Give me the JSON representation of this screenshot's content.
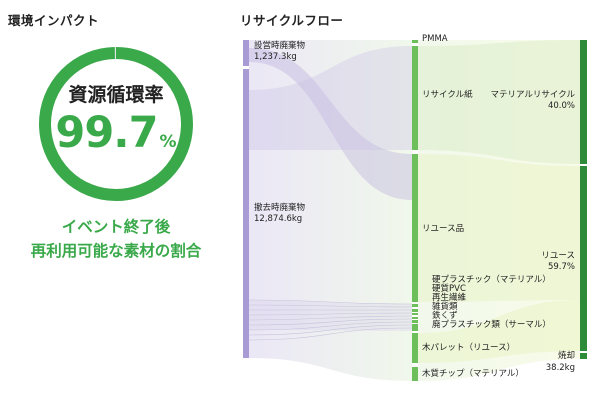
{
  "impact": {
    "title": "環境インパクト",
    "ring_caption": "資源循環率",
    "ring_value": "99.7",
    "ring_unit": "%",
    "ring_fraction": 0.997,
    "desc_line1": "イベント終了後",
    "desc_line2": "再利用可能な素材の割合",
    "accent_color": "#39a94a"
  },
  "chart_data": {
    "type": "sankey",
    "title": "リサイクルフロー",
    "sources": [
      {
        "name": "設営時廃棄物",
        "value_label": "1,237.3kg",
        "value": 1237.3
      },
      {
        "name": "撤去時廃棄物",
        "value_label": "12,874.6kg",
        "value": 12874.6
      }
    ],
    "materials": [
      {
        "name": "PMMA"
      },
      {
        "name": "リサイクル紙"
      },
      {
        "name": "リユース品"
      },
      {
        "name": "硬プラスチック（マテリアル）"
      },
      {
        "name": "硬質PVC"
      },
      {
        "name": "再生繊維"
      },
      {
        "name": "雑貨類"
      },
      {
        "name": "鉄くず"
      },
      {
        "name": "廃プラスチック類（サーマル）"
      },
      {
        "name": "木パレット（リユース）"
      },
      {
        "name": "木質チップ（マテリアル）"
      }
    ],
    "outcomes": [
      {
        "name": "マテリアルリサイクル",
        "value_label": "40.0%",
        "value": 40.0
      },
      {
        "name": "リユース",
        "value_label": "59.7%",
        "value": 59.7
      },
      {
        "name": "焼却",
        "value_label": "38.2kg",
        "value": 38.2
      }
    ],
    "colors": {
      "source": "#a99bd3",
      "material": "#6cbf5a",
      "outcome": "#2e8b3a"
    }
  }
}
